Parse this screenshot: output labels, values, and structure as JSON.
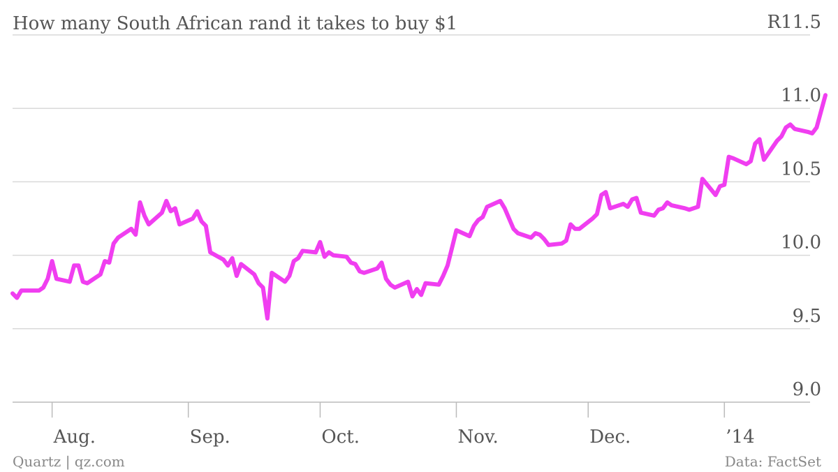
{
  "chart_data": {
    "type": "line",
    "title": "How many South African rand it takes to buy $1",
    "ylim": [
      9.0,
      11.5
    ],
    "y_ticks": [
      {
        "value": 11.5,
        "label": "R11.5"
      },
      {
        "value": 11.0,
        "label": "11.0"
      },
      {
        "value": 10.5,
        "label": "10.5"
      },
      {
        "value": 10.0,
        "label": "10.0"
      },
      {
        "value": 9.5,
        "label": "9.5"
      },
      {
        "value": 9.0,
        "label": "9.0"
      }
    ],
    "x_ticks": [
      {
        "date": "2013-08-01",
        "label": "Aug."
      },
      {
        "date": "2013-09-01",
        "label": "Sep."
      },
      {
        "date": "2013-10-01",
        "label": "Oct."
      },
      {
        "date": "2013-11-01",
        "label": "Nov."
      },
      {
        "date": "2013-12-01",
        "label": "Dec."
      },
      {
        "date": "2014-01-01",
        "label": "’14"
      }
    ],
    "xlim": [
      "2013-07-23",
      "2014-01-24"
    ],
    "grid": true,
    "line_color": "#f03ef0",
    "series": [
      {
        "values": [
          [
            "2013-07-23",
            9.74
          ],
          [
            "2013-07-24",
            9.71
          ],
          [
            "2013-07-25",
            9.76
          ],
          [
            "2013-07-27",
            9.76
          ],
          [
            "2013-07-29",
            9.76
          ],
          [
            "2013-07-30",
            9.78
          ],
          [
            "2013-07-31",
            9.84
          ],
          [
            "2013-08-01",
            9.96
          ],
          [
            "2013-08-02",
            9.84
          ],
          [
            "2013-08-05",
            9.82
          ],
          [
            "2013-08-06",
            9.93
          ],
          [
            "2013-08-07",
            9.93
          ],
          [
            "2013-08-08",
            9.82
          ],
          [
            "2013-08-09",
            9.81
          ],
          [
            "2013-08-12",
            9.87
          ],
          [
            "2013-08-13",
            9.96
          ],
          [
            "2013-08-14",
            9.95
          ],
          [
            "2013-08-15",
            10.08
          ],
          [
            "2013-08-16",
            10.12
          ],
          [
            "2013-08-19",
            10.18
          ],
          [
            "2013-08-20",
            10.14
          ],
          [
            "2013-08-21",
            10.36
          ],
          [
            "2013-08-22",
            10.27
          ],
          [
            "2013-08-23",
            10.21
          ],
          [
            "2013-08-26",
            10.29
          ],
          [
            "2013-08-27",
            10.37
          ],
          [
            "2013-08-28",
            10.3
          ],
          [
            "2013-08-29",
            10.32
          ],
          [
            "2013-08-30",
            10.21
          ],
          [
            "2013-09-02",
            10.25
          ],
          [
            "2013-09-03",
            10.3
          ],
          [
            "2013-09-04",
            10.23
          ],
          [
            "2013-09-05",
            10.2
          ],
          [
            "2013-09-06",
            10.02
          ],
          [
            "2013-09-09",
            9.97
          ],
          [
            "2013-09-10",
            9.93
          ],
          [
            "2013-09-11",
            9.98
          ],
          [
            "2013-09-12",
            9.86
          ],
          [
            "2013-09-13",
            9.94
          ],
          [
            "2013-09-16",
            9.87
          ],
          [
            "2013-09-17",
            9.81
          ],
          [
            "2013-09-18",
            9.78
          ],
          [
            "2013-09-19",
            9.57
          ],
          [
            "2013-09-20",
            9.88
          ],
          [
            "2013-09-23",
            9.82
          ],
          [
            "2013-09-24",
            9.86
          ],
          [
            "2013-09-25",
            9.96
          ],
          [
            "2013-09-26",
            9.98
          ],
          [
            "2013-09-27",
            10.03
          ],
          [
            "2013-09-30",
            10.02
          ],
          [
            "2013-10-01",
            10.09
          ],
          [
            "2013-10-02",
            9.99
          ],
          [
            "2013-10-03",
            10.02
          ],
          [
            "2013-10-04",
            10.0
          ],
          [
            "2013-10-07",
            9.99
          ],
          [
            "2013-10-08",
            9.95
          ],
          [
            "2013-10-09",
            9.94
          ],
          [
            "2013-10-10",
            9.89
          ],
          [
            "2013-10-11",
            9.88
          ],
          [
            "2013-10-14",
            9.91
          ],
          [
            "2013-10-15",
            9.95
          ],
          [
            "2013-10-16",
            9.84
          ],
          [
            "2013-10-17",
            9.8
          ],
          [
            "2013-10-18",
            9.78
          ],
          [
            "2013-10-21",
            9.82
          ],
          [
            "2013-10-22",
            9.72
          ],
          [
            "2013-10-23",
            9.77
          ],
          [
            "2013-10-24",
            9.73
          ],
          [
            "2013-10-25",
            9.81
          ],
          [
            "2013-10-28",
            9.8
          ],
          [
            "2013-10-29",
            9.86
          ],
          [
            "2013-10-30",
            9.93
          ],
          [
            "2013-10-31",
            10.05
          ],
          [
            "2013-11-01",
            10.17
          ],
          [
            "2013-11-04",
            10.13
          ],
          [
            "2013-11-05",
            10.2
          ],
          [
            "2013-11-06",
            10.24
          ],
          [
            "2013-11-07",
            10.26
          ],
          [
            "2013-11-08",
            10.33
          ],
          [
            "2013-11-11",
            10.37
          ],
          [
            "2013-11-12",
            10.32
          ],
          [
            "2013-11-13",
            10.25
          ],
          [
            "2013-11-14",
            10.18
          ],
          [
            "2013-11-15",
            10.15
          ],
          [
            "2013-11-18",
            10.12
          ],
          [
            "2013-11-19",
            10.15
          ],
          [
            "2013-11-20",
            10.14
          ],
          [
            "2013-11-21",
            10.11
          ],
          [
            "2013-11-22",
            10.07
          ],
          [
            "2013-11-25",
            10.08
          ],
          [
            "2013-11-26",
            10.1
          ],
          [
            "2013-11-27",
            10.21
          ],
          [
            "2013-11-28",
            10.18
          ],
          [
            "2013-11-29",
            10.18
          ],
          [
            "2013-12-02",
            10.25
          ],
          [
            "2013-12-03",
            10.28
          ],
          [
            "2013-12-04",
            10.41
          ],
          [
            "2013-12-05",
            10.43
          ],
          [
            "2013-12-06",
            10.32
          ],
          [
            "2013-12-09",
            10.35
          ],
          [
            "2013-12-10",
            10.33
          ],
          [
            "2013-12-11",
            10.38
          ],
          [
            "2013-12-12",
            10.39
          ],
          [
            "2013-12-13",
            10.29
          ],
          [
            "2013-12-16",
            10.27
          ],
          [
            "2013-12-17",
            10.31
          ],
          [
            "2013-12-18",
            10.32
          ],
          [
            "2013-12-19",
            10.36
          ],
          [
            "2013-12-20",
            10.34
          ],
          [
            "2013-12-23",
            10.32
          ],
          [
            "2013-12-24",
            10.31
          ],
          [
            "2013-12-26",
            10.33
          ],
          [
            "2013-12-27",
            10.52
          ],
          [
            "2013-12-30",
            10.41
          ],
          [
            "2013-12-31",
            10.47
          ],
          [
            "2014-01-01",
            10.48
          ],
          [
            "2014-01-02",
            10.67
          ],
          [
            "2014-01-03",
            10.66
          ],
          [
            "2014-01-06",
            10.62
          ],
          [
            "2014-01-07",
            10.64
          ],
          [
            "2014-01-08",
            10.76
          ],
          [
            "2014-01-09",
            10.79
          ],
          [
            "2014-01-10",
            10.65
          ],
          [
            "2014-01-13",
            10.78
          ],
          [
            "2014-01-14",
            10.81
          ],
          [
            "2014-01-15",
            10.87
          ],
          [
            "2014-01-16",
            10.89
          ],
          [
            "2014-01-17",
            10.86
          ],
          [
            "2014-01-20",
            10.84
          ],
          [
            "2014-01-21",
            10.83
          ],
          [
            "2014-01-22",
            10.87
          ],
          [
            "2014-01-24",
            11.09
          ]
        ]
      }
    ]
  },
  "footer": {
    "source_left": "Quartz | qz.com",
    "source_right": "Data: FactSet"
  }
}
